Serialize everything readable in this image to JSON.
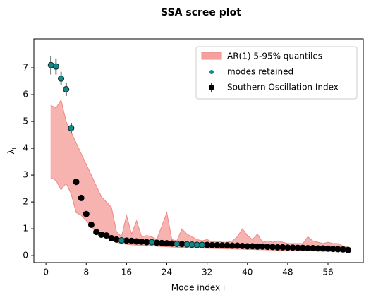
{
  "chart_data": {
    "type": "scree",
    "title": "SSA scree plot",
    "xlabel": "Mode index i",
    "ylabel": "λ",
    "ylabel_subscript": "i",
    "x": [
      1,
      2,
      3,
      4,
      5,
      6,
      7,
      8,
      9,
      10,
      11,
      12,
      13,
      14,
      15,
      16,
      17,
      18,
      19,
      20,
      21,
      22,
      23,
      24,
      25,
      26,
      27,
      28,
      29,
      30,
      31,
      32,
      33,
      34,
      35,
      36,
      37,
      38,
      39,
      40,
      41,
      42,
      43,
      44,
      45,
      46,
      47,
      48,
      49,
      50,
      51,
      52,
      53,
      54,
      55,
      56,
      57,
      58,
      59,
      60
    ],
    "xlim": [
      -2.4,
      63
    ],
    "xticks": [
      0,
      8,
      16,
      24,
      32,
      40,
      48,
      56
    ],
    "ylim": [
      -0.26,
      8.08
    ],
    "yticks": [
      0,
      1,
      2,
      3,
      4,
      5,
      6,
      7
    ],
    "legend": "upper right",
    "series": [
      {
        "name": "AR(1) 5-95% quantiles",
        "color": "#f4a09c",
        "upper": [
          5.6,
          5.5,
          5.8,
          5.0,
          4.6,
          4.2,
          3.8,
          3.4,
          3.0,
          2.6,
          2.2,
          2.0,
          1.8,
          0.9,
          0.7,
          1.5,
          0.8,
          1.3,
          0.7,
          0.75,
          0.7,
          0.6,
          1.1,
          1.6,
          0.6,
          0.55,
          1.0,
          0.8,
          0.7,
          0.6,
          0.55,
          0.6,
          0.5,
          0.55,
          0.5,
          0.5,
          0.55,
          0.7,
          1.0,
          0.75,
          0.6,
          0.8,
          0.5,
          0.55,
          0.5,
          0.55,
          0.5,
          0.45,
          0.45,
          0.45,
          0.45,
          0.7,
          0.55,
          0.5,
          0.45,
          0.5,
          0.45,
          0.45,
          0.35,
          0.35
        ],
        "lower": [
          2.9,
          2.8,
          2.45,
          2.7,
          2.3,
          1.6,
          1.5,
          1.3,
          1.1,
          0.85,
          0.8,
          0.7,
          0.6,
          0.5,
          0.45,
          0.42,
          0.4,
          0.39,
          0.38,
          0.37,
          0.36,
          0.35,
          0.34,
          0.33,
          0.32,
          0.31,
          0.3,
          0.3,
          0.29,
          0.28,
          0.28,
          0.27,
          0.27,
          0.26,
          0.26,
          0.25,
          0.25,
          0.24,
          0.24,
          0.23,
          0.23,
          0.22,
          0.22,
          0.21,
          0.21,
          0.2,
          0.2,
          0.2,
          0.19,
          0.19,
          0.18,
          0.18,
          0.17,
          0.17,
          0.16,
          0.16,
          0.15,
          0.15,
          0.14,
          0.14
        ]
      },
      {
        "name": "modes retained",
        "color": "#138a8a",
        "x": [
          1,
          2,
          3,
          4,
          5,
          15,
          21,
          26,
          28,
          29,
          30,
          31
        ],
        "values": [
          7.1,
          7.05,
          6.6,
          6.2,
          4.75,
          0.57,
          0.5,
          0.44,
          0.42,
          0.41,
          0.4,
          0.4
        ]
      },
      {
        "name": "Southern Oscillation Index",
        "color": "#000000",
        "values": [
          7.1,
          7.05,
          6.6,
          6.2,
          4.75,
          2.75,
          2.15,
          1.55,
          1.15,
          0.88,
          0.78,
          0.75,
          0.65,
          0.6,
          0.57,
          0.56,
          0.55,
          0.53,
          0.52,
          0.5,
          0.5,
          0.48,
          0.47,
          0.46,
          0.45,
          0.44,
          0.43,
          0.42,
          0.41,
          0.4,
          0.4,
          0.4,
          0.39,
          0.39,
          0.38,
          0.38,
          0.37,
          0.37,
          0.36,
          0.35,
          0.35,
          0.34,
          0.34,
          0.33,
          0.32,
          0.31,
          0.31,
          0.3,
          0.3,
          0.29,
          0.29,
          0.28,
          0.28,
          0.27,
          0.27,
          0.26,
          0.25,
          0.24,
          0.23,
          0.21
        ],
        "errors": [
          0.35,
          0.3,
          0.25,
          0.25,
          0.2,
          0.12,
          0.08,
          0.06,
          0.05,
          0.05,
          0.05,
          0.05,
          0.05,
          0.05,
          0.05,
          0.05,
          0.05,
          0.05,
          0.05,
          0.05,
          0.05,
          0.05,
          0.05,
          0.05,
          0.05,
          0.05,
          0.05,
          0.05,
          0.05,
          0.05,
          0.05,
          0.05,
          0.05,
          0.05,
          0.05,
          0.05,
          0.05,
          0.05,
          0.05,
          0.05,
          0.05,
          0.05,
          0.05,
          0.05,
          0.05,
          0.05,
          0.05,
          0.05,
          0.05,
          0.05,
          0.05,
          0.05,
          0.05,
          0.05,
          0.05,
          0.05,
          0.05,
          0.05,
          0.05,
          0.05
        ]
      }
    ]
  }
}
